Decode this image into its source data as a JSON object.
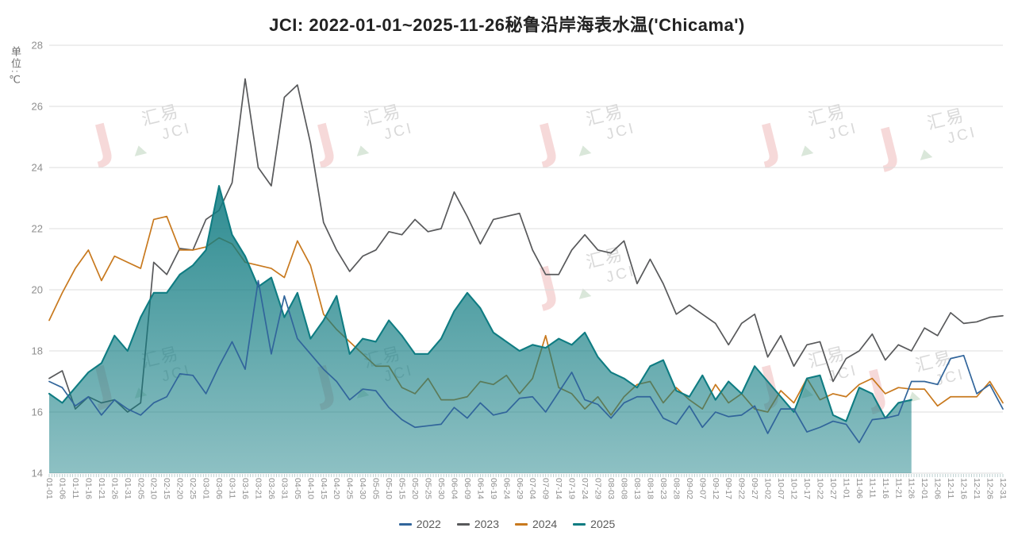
{
  "title": "JCI: 2022-01-01~2025-11-26秘鲁沿岸海表水温('Chicama')",
  "y_axis_unit": "单位:℃",
  "watermark": {
    "zh": "汇易",
    "en": "JCI"
  },
  "colors": {
    "grid": "#dcdcdc",
    "axis_tick": "#adc6c6",
    "axis_label": "#8f8f8f",
    "title_text": "#222222",
    "legend_text": "#5a5a5a",
    "background": "#ffffff"
  },
  "chart_data": {
    "type": "line",
    "title": "JCI: 2022-01-01~2025-11-26秘鲁沿岸海表水温('Chicama')",
    "ylabel": "单位:℃",
    "ylim": [
      14,
      28
    ],
    "y_ticks": [
      28,
      26,
      24,
      22,
      20,
      18,
      16,
      14
    ],
    "grid": "horizontal",
    "legend_position": "bottom",
    "sample_interval_days": 5,
    "x_tick_labels": [
      "01-01",
      "01-06",
      "01-11",
      "01-16",
      "01-21",
      "01-26",
      "01-31",
      "02-05",
      "02-10",
      "02-15",
      "02-20",
      "02-25",
      "03-01",
      "03-06",
      "03-11",
      "03-16",
      "03-21",
      "03-26",
      "03-31",
      "04-05",
      "04-10",
      "04-15",
      "04-20",
      "04-25",
      "04-30",
      "05-05",
      "05-10",
      "05-15",
      "05-20",
      "05-25",
      "05-30",
      "06-04",
      "06-09",
      "06-14",
      "06-19",
      "06-24",
      "06-29",
      "07-04",
      "07-09",
      "07-14",
      "07-19",
      "07-24",
      "07-29",
      "08-03",
      "08-08",
      "08-13",
      "08-18",
      "08-23",
      "08-28",
      "09-02",
      "09-07",
      "09-12",
      "09-17",
      "09-22",
      "09-27",
      "10-02",
      "10-07",
      "10-12",
      "10-17",
      "10-22",
      "10-27",
      "11-01",
      "11-06",
      "11-11",
      "11-16",
      "11-21",
      "11-26",
      "12-01",
      "12-06",
      "12-11",
      "12-16",
      "12-21",
      "12-26",
      "12-31"
    ],
    "series": [
      {
        "name": "2023",
        "color": "#58595B",
        "area": false,
        "values": [
          17.1,
          17.35,
          16.1,
          16.5,
          16.3,
          16.4,
          16.0,
          16.3,
          20.9,
          20.5,
          21.35,
          21.3,
          22.3,
          22.6,
          23.5,
          26.9,
          24.0,
          23.4,
          26.3,
          26.7,
          24.8,
          22.2,
          21.3,
          20.6,
          21.1,
          21.3,
          21.9,
          21.8,
          22.3,
          21.9,
          22.0,
          23.2,
          22.4,
          21.5,
          22.3,
          22.4,
          22.5,
          21.3,
          20.5,
          20.5,
          21.3,
          21.8,
          21.3,
          21.2,
          21.6,
          20.2,
          21.0,
          20.2,
          19.2,
          19.5,
          19.2,
          18.9,
          18.2,
          18.9,
          19.2,
          17.8,
          18.5,
          17.5,
          18.2,
          18.3,
          17.0,
          17.75,
          18.0,
          18.55,
          17.7,
          18.2,
          18.0,
          18.75,
          18.5,
          19.25,
          18.9,
          18.95,
          19.1,
          19.15
        ]
      },
      {
        "name": "2024",
        "color": "#C8791E",
        "area": false,
        "values": [
          19.0,
          19.9,
          20.7,
          21.3,
          20.3,
          21.1,
          20.9,
          20.7,
          22.3,
          22.4,
          21.3,
          21.3,
          21.4,
          21.7,
          21.5,
          20.9,
          20.8,
          20.7,
          20.4,
          21.6,
          20.8,
          19.2,
          18.7,
          18.3,
          17.9,
          17.5,
          17.5,
          16.8,
          16.6,
          17.1,
          16.4,
          16.4,
          16.5,
          17.0,
          16.9,
          17.2,
          16.6,
          17.1,
          18.5,
          16.8,
          16.6,
          16.1,
          16.5,
          15.9,
          16.5,
          16.9,
          17.0,
          16.3,
          16.8,
          16.4,
          16.1,
          16.9,
          16.3,
          16.6,
          16.1,
          16.0,
          16.7,
          16.3,
          17.1,
          16.4,
          16.6,
          16.5,
          16.9,
          17.1,
          16.6,
          16.8,
          16.75,
          16.75,
          16.2,
          16.5,
          16.5,
          16.5,
          17.0,
          16.3
        ]
      },
      {
        "name": "2025",
        "color": "#0F7C82",
        "area": true,
        "ends_at": "11-26",
        "area_gradient_top": "rgba(17,124,130,0.88)",
        "area_gradient_bottom": "rgba(17,124,130,0.48)",
        "values": [
          16.6,
          16.3,
          16.8,
          17.3,
          17.6,
          18.5,
          18.0,
          19.1,
          19.9,
          19.9,
          20.5,
          20.8,
          21.3,
          23.4,
          21.8,
          21.1,
          20.1,
          20.4,
          19.1,
          19.9,
          18.4,
          19.0,
          19.8,
          17.9,
          18.4,
          18.3,
          19.0,
          18.5,
          17.9,
          17.9,
          18.4,
          19.3,
          19.9,
          19.4,
          18.6,
          18.3,
          18.0,
          18.2,
          18.1,
          18.4,
          18.2,
          18.6,
          17.8,
          17.3,
          17.1,
          16.8,
          17.5,
          17.7,
          16.7,
          16.5,
          17.2,
          16.4,
          17.0,
          16.6,
          17.5,
          17.0,
          16.5,
          16.0,
          17.1,
          17.2,
          15.9,
          15.7,
          16.8,
          16.6,
          15.8,
          16.3,
          16.4
        ]
      },
      {
        "name": "2022",
        "color": "#31659B",
        "area": false,
        "values": [
          17.0,
          16.8,
          16.2,
          16.5,
          15.9,
          16.4,
          16.1,
          15.9,
          16.3,
          16.5,
          17.25,
          17.2,
          16.6,
          17.5,
          18.3,
          17.4,
          20.3,
          17.9,
          19.8,
          18.4,
          17.9,
          17.4,
          17.0,
          16.4,
          16.75,
          16.7,
          16.15,
          15.75,
          15.5,
          15.55,
          15.6,
          16.15,
          15.8,
          16.3,
          15.9,
          16.0,
          16.45,
          16.5,
          16.0,
          16.65,
          17.3,
          16.4,
          16.25,
          15.8,
          16.3,
          16.5,
          16.5,
          15.8,
          15.6,
          16.2,
          15.5,
          16.0,
          15.85,
          15.9,
          16.2,
          15.3,
          16.1,
          16.1,
          15.35,
          15.5,
          15.7,
          15.6,
          15.0,
          15.75,
          15.8,
          15.9,
          17.0,
          17.0,
          16.9,
          17.75,
          17.85,
          16.6,
          16.9,
          16.1
        ]
      }
    ],
    "legend_order": [
      "2022",
      "2023",
      "2024",
      "2025"
    ]
  }
}
